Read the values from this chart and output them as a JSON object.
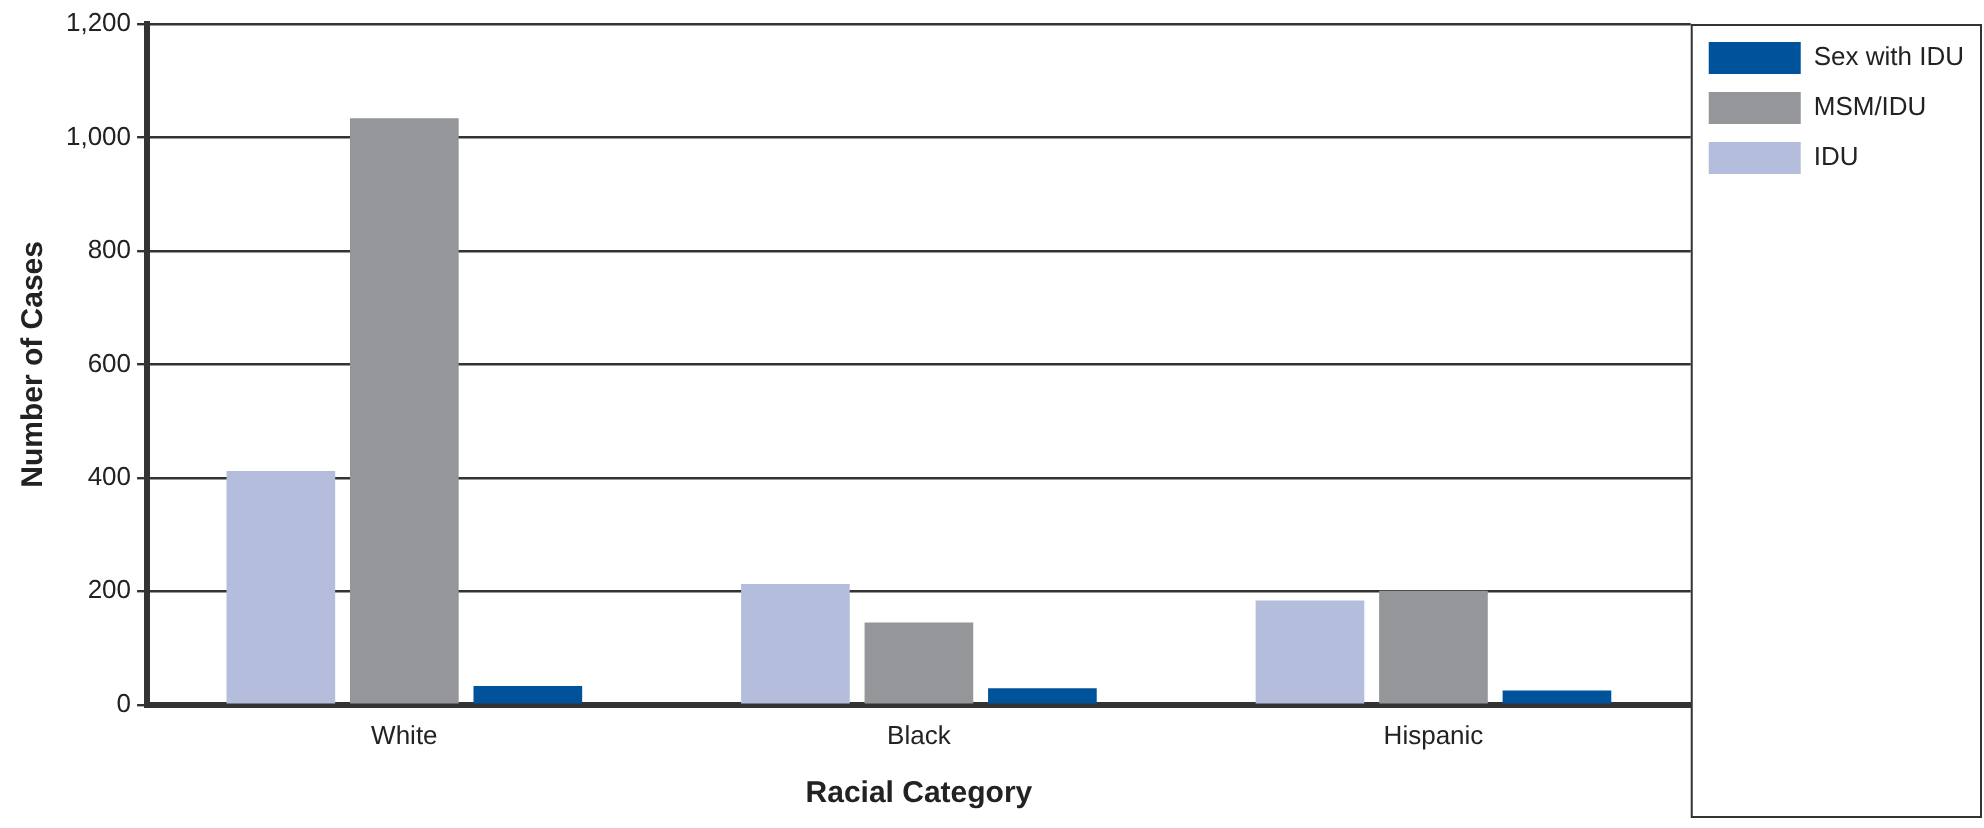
{
  "chart_data": {
    "type": "bar",
    "xlabel": "Racial Category",
    "ylabel": "Number of Cases",
    "categories": [
      "White",
      "Black",
      "Hispanic"
    ],
    "series": [
      {
        "name": "IDU",
        "color": "#b4bedc",
        "values": [
          412,
          213,
          184
        ]
      },
      {
        "name": "MSM/IDU",
        "color": "#95969a",
        "values": [
          1034,
          145,
          201
        ]
      },
      {
        "name": "Sex with IDU",
        "color": "#00529b",
        "values": [
          33,
          29,
          25
        ]
      }
    ],
    "ylim": [
      0,
      1200
    ],
    "yticks": [
      0,
      200,
      400,
      600,
      800,
      {
        "value": 1000,
        "label": "1,000"
      },
      {
        "value": 1200,
        "label": "1,200"
      }
    ],
    "grid": "y",
    "legend": "right"
  }
}
